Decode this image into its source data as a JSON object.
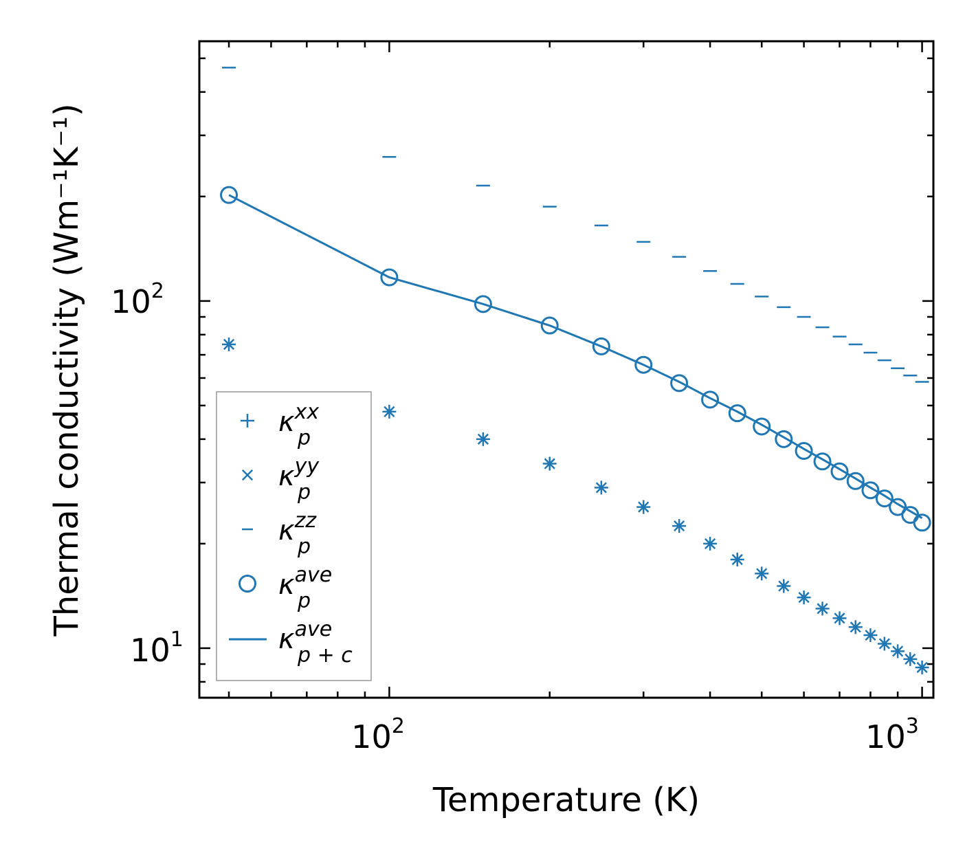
{
  "chart_data": {
    "type": "scatter",
    "xscale": "log",
    "yscale": "log",
    "xlabel": "Temperature (K)",
    "ylabel": "Thermal conductivity (Wm⁻¹K⁻¹)",
    "xlim": [
      44,
      1050
    ],
    "ylim": [
      7.2,
      560
    ],
    "xticks": [
      {
        "base": "10",
        "exp": "2",
        "value": 100
      },
      {
        "base": "10",
        "exp": "3",
        "value": 1000
      }
    ],
    "yticks": [
      {
        "base": "10",
        "exp": "1",
        "value": 10
      },
      {
        "base": "10",
        "exp": "2",
        "value": 100
      }
    ],
    "x": [
      50,
      100,
      150,
      200,
      250,
      300,
      350,
      400,
      450,
      500,
      550,
      600,
      650,
      700,
      750,
      800,
      850,
      900,
      950,
      1000
    ],
    "series": [
      {
        "name": "kappa_p^xx",
        "marker": "plus",
        "values": [
          75,
          48,
          40,
          34,
          29,
          25.5,
          22.5,
          20,
          18,
          16.4,
          15.1,
          14,
          13,
          12.2,
          11.5,
          10.9,
          10.3,
          9.8,
          9.3,
          8.8
        ]
      },
      {
        "name": "kappa_p^yy",
        "marker": "x",
        "values": [
          75,
          48,
          40,
          34,
          29,
          25.5,
          22.5,
          20,
          18,
          16.4,
          15.1,
          14,
          13,
          12.2,
          11.5,
          10.9,
          10.3,
          9.8,
          9.3,
          8.8
        ]
      },
      {
        "name": "kappa_p^zz",
        "marker": "hline",
        "values": [
          470,
          260,
          215,
          187,
          165,
          148,
          134,
          122,
          112,
          103,
          96,
          90,
          84,
          79,
          75,
          71,
          67.5,
          64,
          61,
          58.5
        ]
      },
      {
        "name": "kappa_p^ave",
        "marker": "circle",
        "values": [
          202,
          117,
          98,
          85,
          74,
          65.5,
          58,
          52,
          47.5,
          43.5,
          40,
          37,
          34.5,
          32.3,
          30.3,
          28.5,
          27,
          25.5,
          24.2,
          23
        ]
      },
      {
        "name": "kappa_p+c^ave",
        "marker": "line",
        "values": [
          202,
          117,
          98,
          85,
          74,
          65.5,
          58.5,
          52.5,
          48,
          44,
          40.5,
          37.5,
          35,
          32.8,
          30.8,
          29,
          27.5,
          26,
          24.8,
          23.7
        ]
      }
    ],
    "legend": {
      "position": "lower-left",
      "entries": [
        {
          "symbol": "+",
          "base": "κ",
          "sub": "p",
          "sup": "xx"
        },
        {
          "symbol": "×",
          "base": "κ",
          "sub": "p",
          "sup": "yy"
        },
        {
          "symbol": "–",
          "base": "κ",
          "sub": "p",
          "sup": "zz"
        },
        {
          "symbol": "○",
          "base": "κ",
          "sub": "p",
          "sup": "ave"
        },
        {
          "symbol": "—",
          "base": "κ",
          "sub": "p + c",
          "sup": "ave"
        }
      ]
    },
    "color": "#1f77b4"
  }
}
